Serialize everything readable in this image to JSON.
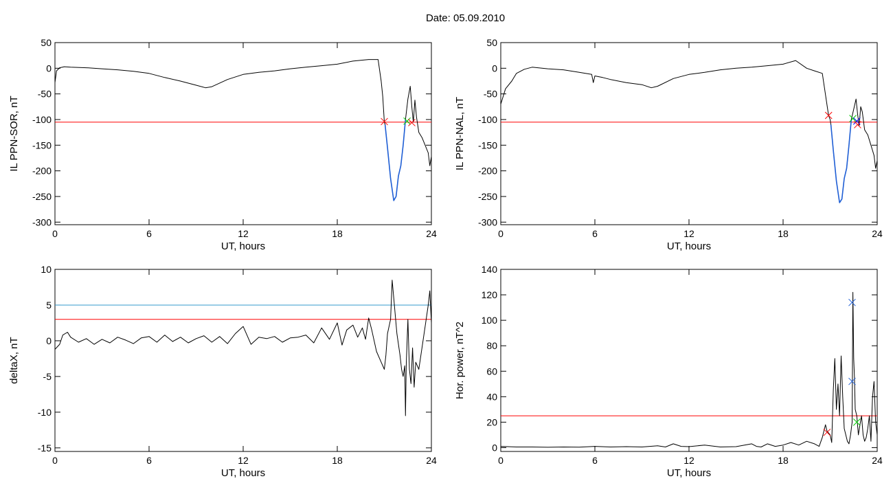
{
  "title": "Date:  05.09.2010",
  "chart_data": [
    {
      "type": "line",
      "xlabel": "UT, hours",
      "ylabel": "IL PPN-SOR, nT",
      "xlim": [
        0,
        24
      ],
      "ylim": [
        -305,
        50
      ],
      "xticks": [
        0,
        6,
        12,
        18,
        24
      ],
      "yticks": [
        50,
        0,
        -50,
        -100,
        -150,
        -200,
        -250,
        -300
      ],
      "hlines": [
        {
          "y": -105,
          "color": "#ff0000"
        }
      ],
      "series": [
        {
          "color": "#000000",
          "x": [
            0,
            0.1,
            0.3,
            0.6,
            1,
            2,
            3,
            4,
            5,
            6,
            7,
            8,
            9,
            9.6,
            10,
            11,
            12,
            13,
            14,
            15,
            16,
            17,
            18,
            19,
            20,
            20.6,
            20.8,
            20.9,
            21,
            21.05,
            21.2,
            21.4,
            21.6,
            21.75,
            21.9,
            22.05,
            22.2,
            22.35,
            22.5,
            22.65,
            22.75,
            22.85,
            22.95,
            23.05,
            23.2,
            23.4,
            23.6,
            23.8,
            23.9,
            24
          ],
          "y": [
            -28,
            -5,
            1,
            3,
            2,
            1,
            -1,
            -3,
            -6,
            -10,
            -18,
            -25,
            -33,
            -38,
            -36,
            -22,
            -12,
            -8,
            -5,
            -1,
            2,
            5,
            8,
            14,
            17,
            17,
            -25,
            -55,
            -105,
            -110,
            -155,
            -215,
            -258,
            -250,
            -210,
            -190,
            -150,
            -100,
            -60,
            -35,
            -75,
            -105,
            -62,
            -95,
            -125,
            -135,
            -150,
            -165,
            -190,
            -172
          ]
        },
        {
          "color": "#1f5fd6",
          "x": [
            21.05,
            21.2,
            21.4,
            21.6,
            21.75,
            21.9,
            22.05,
            22.2,
            22.35
          ],
          "y": [
            -110,
            -155,
            -215,
            -258,
            -250,
            -210,
            -190,
            -150,
            -100
          ]
        }
      ],
      "markers": [
        {
          "x": 21.0,
          "y": -104,
          "color": "#ff0000"
        },
        {
          "x": 22.45,
          "y": -103,
          "color": "#00cc00"
        },
        {
          "x": 22.75,
          "y": -106,
          "color": "#ff0000"
        }
      ]
    },
    {
      "type": "line",
      "xlabel": "UT, hours",
      "ylabel": "IL PPN-NAL, nT",
      "xlim": [
        0,
        24
      ],
      "ylim": [
        -305,
        50
      ],
      "xticks": [
        0,
        6,
        12,
        18,
        24
      ],
      "yticks": [
        50,
        0,
        -50,
        -100,
        -150,
        -200,
        -250,
        -300
      ],
      "hlines": [
        {
          "y": -105,
          "color": "#ff0000"
        }
      ],
      "series": [
        {
          "color": "#000000",
          "x": [
            0,
            0.3,
            0.7,
            1,
            1.5,
            2,
            3,
            4,
            5,
            5.8,
            5.9,
            6,
            6.5,
            7,
            8,
            9,
            9.6,
            10,
            11,
            12,
            13,
            14,
            15,
            16,
            17,
            18,
            18.8,
            19.5,
            20,
            20.5,
            20.9,
            21,
            21.05,
            21.2,
            21.4,
            21.6,
            21.75,
            21.9,
            22.05,
            22.2,
            22.35,
            22.5,
            22.65,
            22.75,
            22.85,
            22.95,
            23.05,
            23.2,
            23.4,
            23.6,
            23.8,
            23.9,
            24
          ],
          "y": [
            -70,
            -40,
            -25,
            -10,
            -2,
            2,
            -1,
            -3,
            -8,
            -12,
            -28,
            -15,
            -18,
            -22,
            -28,
            -32,
            -38,
            -35,
            -20,
            -12,
            -8,
            -3,
            0,
            2,
            5,
            8,
            15,
            0,
            -5,
            -10,
            -92,
            -100,
            -110,
            -160,
            -220,
            -262,
            -255,
            -215,
            -195,
            -150,
            -100,
            -80,
            -60,
            -90,
            -112,
            -75,
            -85,
            -120,
            -130,
            -150,
            -170,
            -195,
            -180
          ]
        },
        {
          "color": "#1f5fd6",
          "x": [
            21.05,
            21.2,
            21.4,
            21.6,
            21.75,
            21.9,
            22.05,
            22.2,
            22.35
          ],
          "y": [
            -110,
            -160,
            -220,
            -262,
            -255,
            -215,
            -195,
            -150,
            -100
          ]
        }
      ],
      "markers": [
        {
          "x": 20.9,
          "y": -92,
          "color": "#ff0000"
        },
        {
          "x": 22.45,
          "y": -98,
          "color": "#00cc00"
        },
        {
          "x": 22.7,
          "y": -103,
          "color": "#0000ff"
        },
        {
          "x": 22.75,
          "y": -110,
          "color": "#ff0000"
        }
      ]
    },
    {
      "type": "line",
      "xlabel": "UT, hours",
      "ylabel": "deltaX, nT",
      "xlim": [
        0,
        24
      ],
      "ylim": [
        -15.5,
        10
      ],
      "xticks": [
        0,
        6,
        12,
        18,
        24
      ],
      "yticks": [
        10,
        5,
        0,
        -5,
        -10,
        -15
      ],
      "hlines": [
        {
          "y": 5,
          "color": "#3399cc"
        },
        {
          "y": 3,
          "color": "#ff0000"
        }
      ],
      "series": [
        {
          "color": "#000000",
          "x": [
            0,
            0.3,
            0.5,
            0.8,
            1,
            1.5,
            2,
            2.5,
            3,
            3.5,
            4,
            4.5,
            5,
            5.5,
            6,
            6.5,
            7,
            7.5,
            8,
            8.5,
            9,
            9.5,
            10,
            10.5,
            11,
            11.5,
            12,
            12.5,
            13,
            13.5,
            14,
            14.5,
            15,
            15.5,
            16,
            16.5,
            17,
            17.5,
            18,
            18.3,
            18.6,
            19,
            19.3,
            19.6,
            19.8,
            20,
            20.2,
            20.5,
            20.8,
            21,
            21.1,
            21.2,
            21.4,
            21.5,
            21.6,
            21.8,
            22,
            22.1,
            22.2,
            22.3,
            22.35,
            22.4,
            22.5,
            22.6,
            22.7,
            22.8,
            22.9,
            23.0,
            23.2,
            23.4,
            23.6,
            23.8,
            23.9,
            24
          ],
          "y": [
            -1.2,
            -0.5,
            0.8,
            1.2,
            0.5,
            -0.2,
            0.3,
            -0.5,
            0.2,
            -0.3,
            0.5,
            0.1,
            -0.4,
            0.4,
            0.6,
            -0.2,
            0.8,
            -0.1,
            0.5,
            -0.3,
            0.3,
            0.7,
            -0.2,
            0.6,
            -0.4,
            1,
            2,
            -0.5,
            0.5,
            0.3,
            0.6,
            -0.2,
            0.4,
            0.5,
            0.8,
            -0.3,
            1.8,
            0.2,
            2.5,
            -0.6,
            1.5,
            2.2,
            0.5,
            1.8,
            0.2,
            3.2,
            1.5,
            -1.5,
            -3,
            -4,
            -2,
            1,
            3,
            8.5,
            6,
            1,
            -2,
            -4,
            -5,
            -3.5,
            -10.5,
            -3,
            3,
            -4,
            -6,
            -1,
            -6.5,
            -3,
            -4,
            -1,
            2,
            5,
            7,
            2.5
          ]
        }
      ],
      "markers": []
    },
    {
      "type": "line",
      "xlabel": "UT, hours",
      "ylabel": "Hor. power, nT^2",
      "xlim": [
        0,
        24
      ],
      "ylim": [
        -3,
        140
      ],
      "xticks": [
        0,
        6,
        12,
        18,
        24
      ],
      "yticks": [
        140,
        120,
        100,
        80,
        60,
        40,
        20,
        0
      ],
      "hlines": [
        {
          "y": 25,
          "color": "#ff0000"
        }
      ],
      "series": [
        {
          "color": "#000000",
          "x": [
            0,
            1,
            2,
            3,
            4,
            5,
            6,
            7,
            8,
            9,
            10,
            10.5,
            11,
            11.5,
            12,
            13,
            14,
            15,
            16,
            16.3,
            16.6,
            17,
            17.5,
            18,
            18.5,
            19,
            19.5,
            20,
            20.3,
            20.5,
            20.7,
            20.8,
            21,
            21.1,
            21.2,
            21.3,
            21.4,
            21.5,
            21.6,
            21.7,
            21.8,
            21.9,
            22,
            22.1,
            22.2,
            22.3,
            22.4,
            22.45,
            22.5,
            22.55,
            22.6,
            22.7,
            22.8,
            22.9,
            23,
            23.1,
            23.2,
            23.3,
            23.4,
            23.5,
            23.6,
            23.7,
            23.8,
            23.9,
            24
          ],
          "y": [
            1,
            0.5,
            0.5,
            0.3,
            0.5,
            0.4,
            1,
            0.5,
            0.8,
            0.5,
            1.5,
            0.5,
            3,
            1,
            0.8,
            2,
            0.5,
            0.8,
            3,
            1,
            0.5,
            3,
            1,
            2,
            4,
            2,
            5,
            3,
            1,
            8,
            18,
            13,
            10,
            4,
            45,
            70,
            30,
            50,
            25,
            72,
            40,
            15,
            10,
            5,
            3,
            10,
            20,
            122,
            70,
            55,
            30,
            25,
            10,
            18,
            25,
            10,
            5,
            8,
            15,
            25,
            5,
            40,
            52,
            20,
            10
          ]
        }
      ],
      "markers": [
        {
          "x": 20.8,
          "y": 12,
          "color": "#ff0000"
        },
        {
          "x": 22.4,
          "y": 114,
          "color": "#1f5fd6"
        },
        {
          "x": 22.4,
          "y": 52,
          "color": "#1f5fd6"
        },
        {
          "x": 22.7,
          "y": 20,
          "color": "#00cc00"
        }
      ]
    }
  ]
}
